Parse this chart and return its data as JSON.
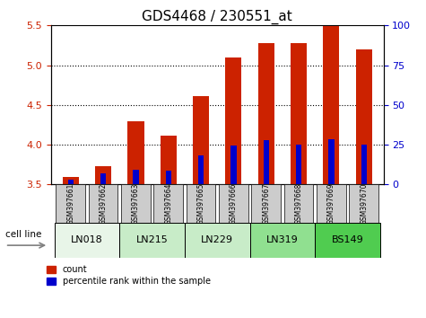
{
  "title": "GDS4468 / 230551_at",
  "samples": [
    "GSM397661",
    "GSM397662",
    "GSM397663",
    "GSM397664",
    "GSM397665",
    "GSM397666",
    "GSM397667",
    "GSM397668",
    "GSM397669",
    "GSM397670"
  ],
  "count_values": [
    3.59,
    3.73,
    4.29,
    4.11,
    4.61,
    5.1,
    5.28,
    5.28,
    5.49,
    5.2
  ],
  "percentile_values": [
    3.56,
    3.64,
    3.69,
    3.67,
    3.87,
    3.99,
    4.06,
    4.0,
    4.07,
    4.0
  ],
  "baseline": 3.5,
  "ylim_left": [
    3.5,
    5.5
  ],
  "ylim_right": [
    0,
    100
  ],
  "yticks_left": [
    3.5,
    4.0,
    4.5,
    5.0,
    5.5
  ],
  "yticks_right": [
    0,
    25,
    50,
    75,
    100
  ],
  "cell_lines": {
    "LN018": [
      0,
      1
    ],
    "LN215": [
      2,
      3
    ],
    "LN229": [
      4,
      5
    ],
    "LN319": [
      6,
      7
    ],
    "BS149": [
      8,
      9
    ]
  },
  "cell_line_colors": {
    "LN018": "#e8f5e8",
    "LN215": "#c8ecc8",
    "LN229": "#c8ecc8",
    "LN319": "#90e090",
    "BS149": "#50cc50"
  },
  "bar_color": "#cc2200",
  "percentile_color": "#0000cc",
  "bar_width": 0.5,
  "grid_color": "#000000",
  "bg_plot": "#ffffff",
  "bg_sample_label": "#cccccc",
  "title_fontsize": 11,
  "tick_label_color_left": "#cc2200",
  "tick_label_color_right": "#0000cc"
}
